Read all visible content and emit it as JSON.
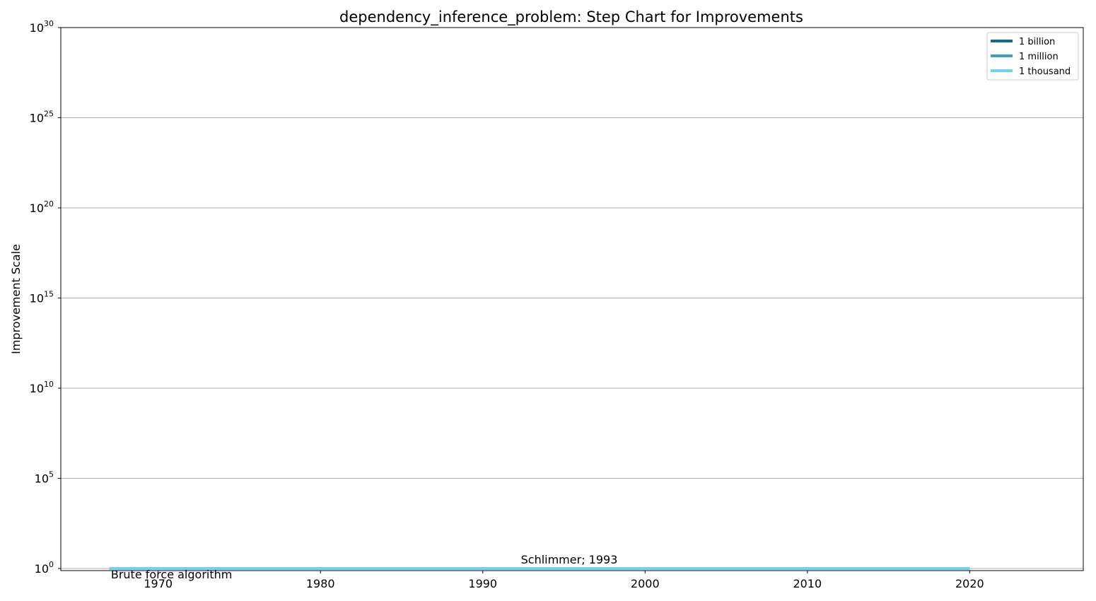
{
  "chart_data": {
    "type": "line",
    "step": true,
    "title": "dependency_inference_problem: Step Chart for Improvements",
    "xlabel": "",
    "ylabel": "Improvement Scale",
    "y_scale": "log",
    "ylim": [
      1,
      1e+30
    ],
    "xlim": [
      1964,
      2027
    ],
    "x_ticks": [
      "1970",
      "1980",
      "1990",
      "2000",
      "2010",
      "2020"
    ],
    "y_ticks": [
      {
        "base": "10",
        "exp": "0"
      },
      {
        "base": "10",
        "exp": "5"
      },
      {
        "base": "10",
        "exp": "10"
      },
      {
        "base": "10",
        "exp": "15"
      },
      {
        "base": "10",
        "exp": "20"
      },
      {
        "base": "10",
        "exp": "25"
      },
      {
        "base": "10",
        "exp": "30"
      }
    ],
    "grid": "horizontal",
    "legend_position": "top-right",
    "series": [
      {
        "name": "1 billion",
        "color": "#136d8a",
        "x": [
          1967,
          1993,
          2020
        ],
        "y": [
          1,
          1,
          1
        ]
      },
      {
        "name": "1 million",
        "color": "#3aa0bc",
        "x": [
          1967,
          1993,
          2020
        ],
        "y": [
          1,
          1,
          1
        ]
      },
      {
        "name": "1 thousand",
        "color": "#73d0f5",
        "x": [
          1967,
          1993,
          2020
        ],
        "y": [
          1,
          1,
          1
        ]
      }
    ],
    "annotations": [
      {
        "text": "Brute force algorithm",
        "x": 1967,
        "y": 1
      },
      {
        "text": "Schlimmer; 1993",
        "x": 1993,
        "y": 1
      }
    ]
  }
}
